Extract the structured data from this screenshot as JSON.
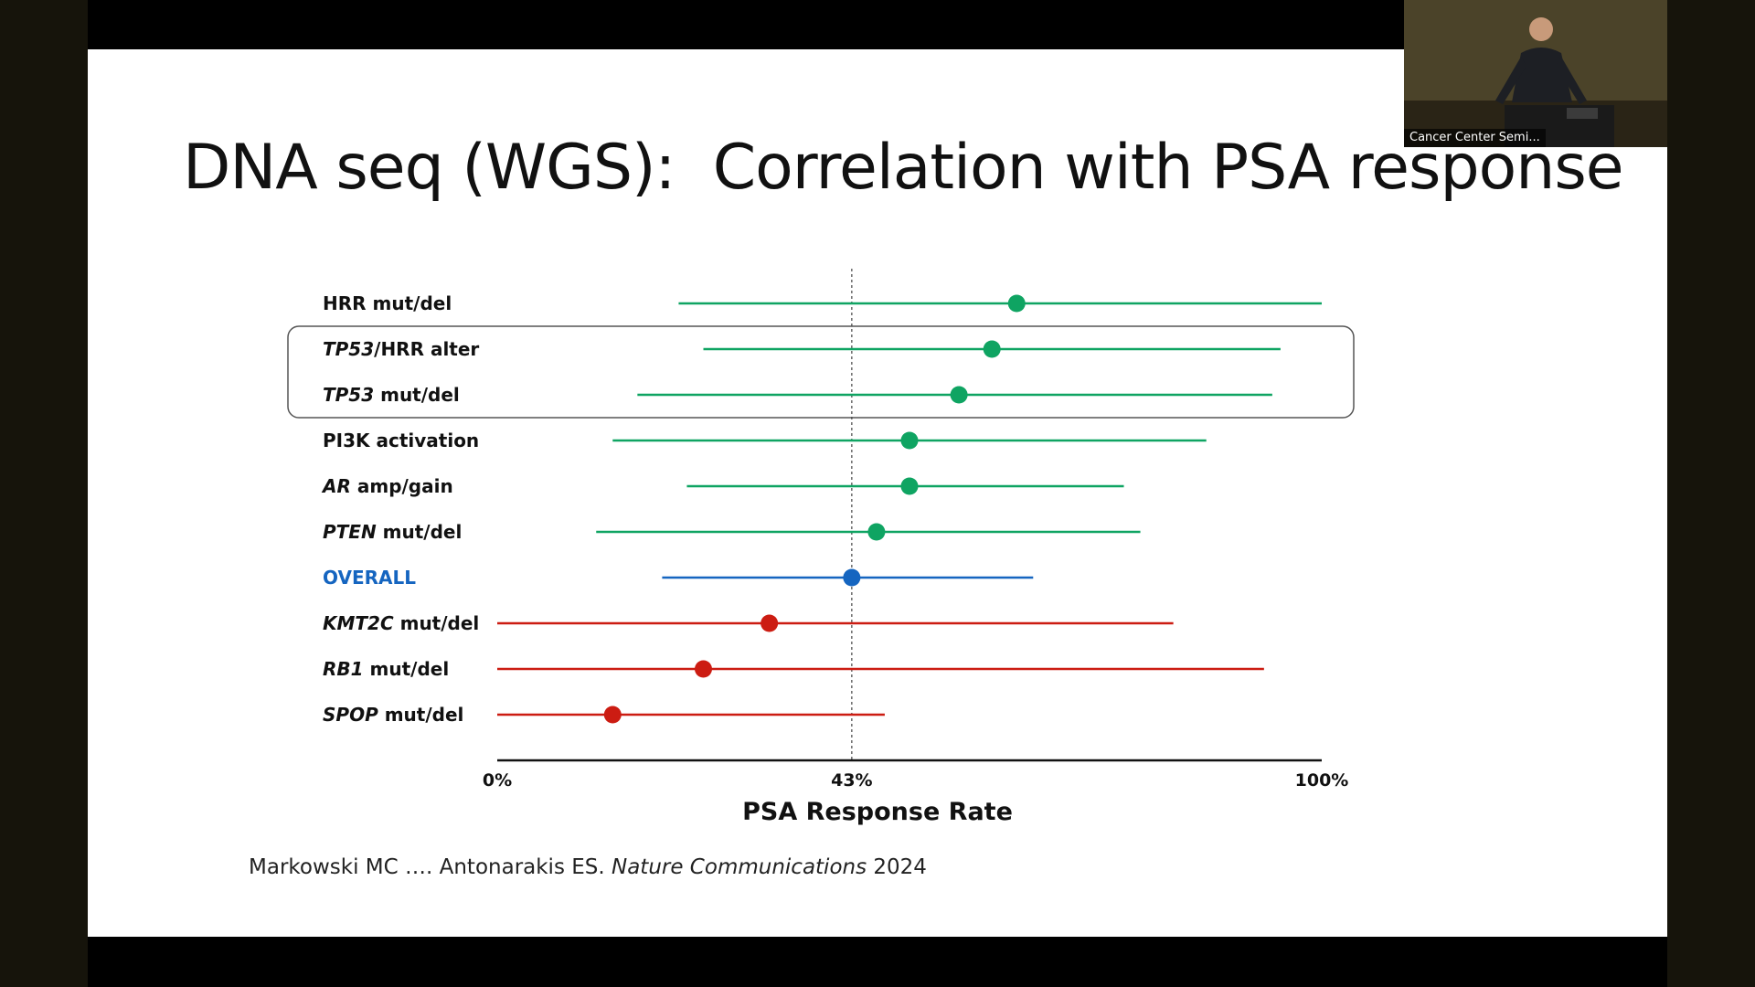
{
  "slide": {
    "title": "DNA seq (WGS):  Correlation with PSA response",
    "citation_authors": "Markowski MC …. Antonarakis ES. ",
    "citation_journal": "Nature Communications",
    "citation_year": " 2024"
  },
  "webcam": {
    "label": "Cancer Center Semi..."
  },
  "colors": {
    "green": "#0fa462",
    "blue": "#1565c0",
    "red": "#cc1c12",
    "box": "#555555"
  },
  "chart_data": {
    "type": "forest",
    "xlabel": "PSA Response Rate",
    "x_ticks": [
      "0%",
      "43%",
      "100%"
    ],
    "xlim": [
      0,
      100
    ],
    "reference_line": 43,
    "highlight_box_rows": [
      "TP53/HRR alter",
      "TP53 mut/del"
    ],
    "rows": [
      {
        "label_italic": "",
        "label_rest": "HRR mut/del",
        "estimate": 63,
        "low": 22,
        "high": 100,
        "color": "green"
      },
      {
        "label_italic": "TP53",
        "label_rest": "/HRR alter",
        "estimate": 60,
        "low": 25,
        "high": 95,
        "color": "green"
      },
      {
        "label_italic": "TP53",
        "label_rest": " mut/del",
        "estimate": 56,
        "low": 17,
        "high": 94,
        "color": "green"
      },
      {
        "label_italic": "",
        "label_rest": "PI3K activation",
        "estimate": 50,
        "low": 14,
        "high": 86,
        "color": "green"
      },
      {
        "label_italic": "AR",
        "label_rest": " amp/gain",
        "estimate": 50,
        "low": 23,
        "high": 76,
        "color": "green"
      },
      {
        "label_italic": "PTEN",
        "label_rest": " mut/del",
        "estimate": 46,
        "low": 12,
        "high": 78,
        "color": "green"
      },
      {
        "label_italic": "",
        "label_rest": "OVERALL",
        "estimate": 43,
        "low": 20,
        "high": 65,
        "color": "blue"
      },
      {
        "label_italic": "KMT2C",
        "label_rest": " mut/del",
        "estimate": 33,
        "low": 0,
        "high": 82,
        "color": "red"
      },
      {
        "label_italic": "RB1",
        "label_rest": " mut/del",
        "estimate": 25,
        "low": 0,
        "high": 93,
        "color": "red"
      },
      {
        "label_italic": "SPOP",
        "label_rest": " mut/del",
        "estimate": 14,
        "low": 0,
        "high": 47,
        "color": "red"
      }
    ]
  }
}
